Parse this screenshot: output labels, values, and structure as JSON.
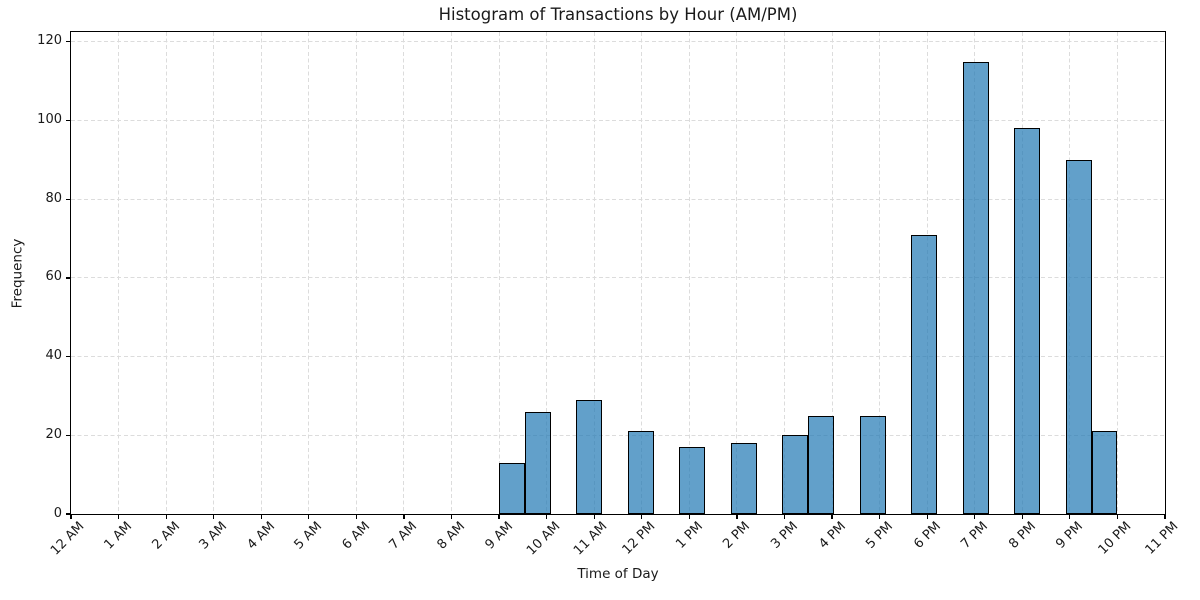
{
  "chart_data": {
    "type": "histogram",
    "title": "Histogram of Transactions by Hour (AM/PM)",
    "xlabel": "Time of Day",
    "ylabel": "Frequency",
    "x_tick_labels": [
      "12 AM",
      "1 AM",
      "2 AM",
      "3 AM",
      "4 AM",
      "5 AM",
      "6 AM",
      "7 AM",
      "8 AM",
      "9 AM",
      "10 AM",
      "11 AM",
      "12 PM",
      "1 PM",
      "2 PM",
      "3 PM",
      "4 PM",
      "5 PM",
      "6 PM",
      "7 PM",
      "8 PM",
      "9 PM",
      "10 PM",
      "11 PM"
    ],
    "y_ticks": [
      0,
      20,
      40,
      60,
      80,
      100,
      120
    ],
    "xlim_hours": [
      0,
      23
    ],
    "ylim": [
      0,
      122.5
    ],
    "grid": {
      "visible": true,
      "linestyle": "dashed",
      "color": "#dcdcdc"
    },
    "categories": [
      "9 AM",
      "10 AM",
      "11 AM",
      "12 PM",
      "1 PM",
      "2 PM",
      "3 PM",
      "4 PM",
      "5 PM",
      "6 PM",
      "7 PM",
      "8 PM",
      "9 PM",
      "10 PM"
    ],
    "values": [
      13,
      26,
      29,
      21,
      17,
      18,
      20,
      25,
      25,
      71,
      115,
      98,
      90,
      21
    ],
    "bin_width_hours": 0.541667,
    "bars": [
      {
        "label": "9 AM",
        "start_hour": 9.0,
        "value": 13
      },
      {
        "label": "10 AM",
        "start_hour": 9.541667,
        "value": 26
      },
      {
        "label": "11 AM",
        "start_hour": 10.625,
        "value": 29
      },
      {
        "label": "12 PM",
        "start_hour": 11.708333,
        "value": 21
      },
      {
        "label": "1 PM",
        "start_hour": 12.791667,
        "value": 17
      },
      {
        "label": "2 PM",
        "start_hour": 13.875,
        "value": 18
      },
      {
        "label": "3 PM",
        "start_hour": 14.958333,
        "value": 20
      },
      {
        "label": "4 PM",
        "start_hour": 15.5,
        "value": 25
      },
      {
        "label": "5 PM",
        "start_hour": 16.583333,
        "value": 25
      },
      {
        "label": "6 PM",
        "start_hour": 17.666667,
        "value": 71
      },
      {
        "label": "7 PM",
        "start_hour": 18.75,
        "value": 115
      },
      {
        "label": "8 PM",
        "start_hour": 19.833333,
        "value": 98
      },
      {
        "label": "9 PM",
        "start_hour": 20.916667,
        "value": 90
      },
      {
        "label": "10 PM",
        "start_hour": 21.458333,
        "value": 21
      }
    ],
    "colors": {
      "bar_fill": "rgba(31, 119, 180, 0.7)",
      "bar_fill_hex": "#62A0CB",
      "bar_edge": "#000000",
      "grid": "#dcdcdc",
      "axis": "#000000",
      "text": "#1a1a1a",
      "background": "#ffffff"
    }
  }
}
